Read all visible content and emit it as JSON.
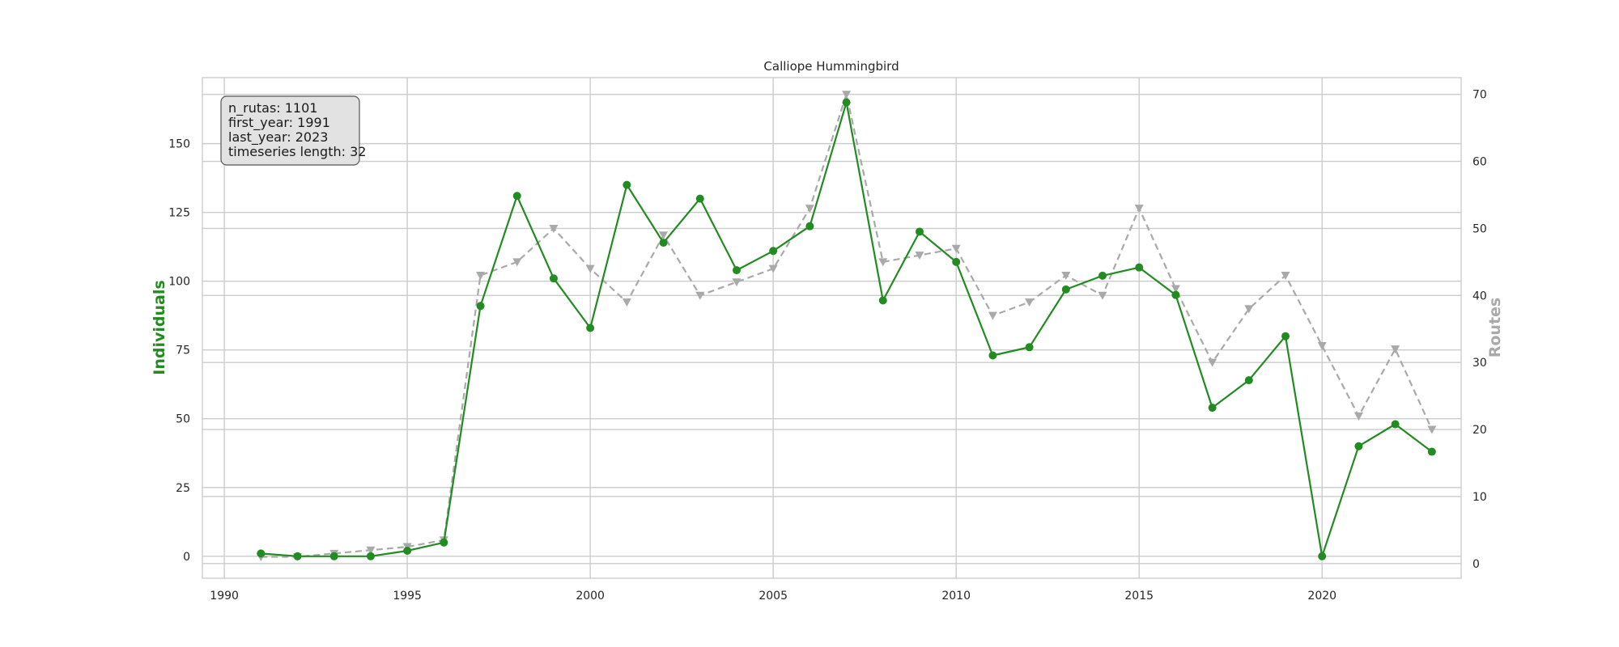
{
  "chart_data": {
    "type": "line",
    "title": "Calliope Hummingbird",
    "xlabel": "",
    "ylabel": "Individuals",
    "ylabel_right": "Routes",
    "xlim": [
      1989.4,
      2023.8
    ],
    "ylim": [
      -8,
      174
    ],
    "ylim_right": [
      -2.2,
      72.5
    ],
    "x_ticks": [
      1990,
      1995,
      2000,
      2005,
      2010,
      2015,
      2020
    ],
    "y_ticks": [
      0,
      25,
      50,
      75,
      100,
      125,
      150
    ],
    "y_ticks_right": [
      0,
      10,
      20,
      30,
      40,
      50,
      60,
      70
    ],
    "grid": true,
    "x": [
      1991,
      1992,
      1993,
      1994,
      1995,
      1996,
      1997,
      1998,
      1999,
      2000,
      2001,
      2002,
      2003,
      2004,
      2005,
      2006,
      2007,
      2008,
      2009,
      2010,
      2011,
      2012,
      2013,
      2014,
      2015,
      2016,
      2017,
      2018,
      2019,
      2020,
      2021,
      2022,
      2023
    ],
    "series": [
      {
        "name": "Individuals",
        "axis": "left",
        "color": "#228b22",
        "marker": "circle",
        "values": [
          1,
          0,
          0,
          0,
          2,
          5,
          91,
          131,
          101,
          83,
          135,
          114,
          130,
          104,
          111,
          120,
          165,
          93,
          118,
          107,
          73,
          76,
          97,
          102,
          105,
          95,
          54,
          64,
          80,
          0,
          40,
          48,
          38
        ]
      },
      {
        "name": "Routes",
        "axis": "right",
        "color": "#a9a9a9",
        "marker": "triangle-down",
        "dashed": true,
        "values": [
          1,
          1,
          1.5,
          2,
          2.5,
          3.5,
          43,
          45,
          50,
          44,
          39,
          49,
          40,
          42,
          44,
          53,
          70,
          45,
          46,
          47,
          37,
          39,
          43,
          40,
          53,
          41,
          30,
          38,
          43,
          32.5,
          22,
          32,
          20
        ]
      }
    ],
    "info_box": {
      "position": "top-left",
      "lines": [
        "n_rutas: 1101",
        "first_year: 1991",
        "last_year: 2023",
        "timeseries length: 32"
      ]
    }
  }
}
